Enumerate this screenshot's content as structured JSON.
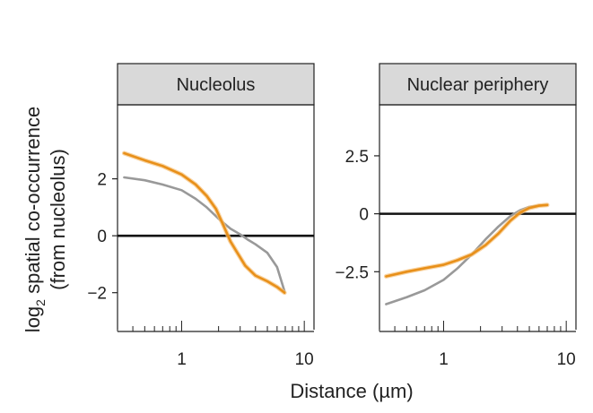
{
  "figure": {
    "ylabel_main": "log",
    "ylabel_sub": "2",
    "ylabel_rest": " spatial co-occurrence",
    "ylabel_line2": "(from nucleolus)",
    "xlabel": "Distance (µm)"
  },
  "chart_data": [
    {
      "type": "line",
      "title": "Nucleolus",
      "x_scale": "log",
      "xlim": [
        0.3,
        12
      ],
      "ylim": [
        -3.3,
        4.6
      ],
      "x_ticks": [
        1,
        10
      ],
      "x_tick_labels": [
        "1",
        "10"
      ],
      "y_ticks": [
        2,
        0,
        -2
      ],
      "y_tick_labels": [
        "2",
        "0",
        "−2"
      ],
      "zero_line": true,
      "series": [
        {
          "color": "#e8901a",
          "x": [
            0.34,
            0.5,
            0.7,
            1.0,
            1.3,
            1.6,
            1.9,
            2.2,
            2.5,
            2.8,
            3.3,
            4.0,
            5.0,
            6.0,
            6.9
          ],
          "y": [
            2.9,
            2.65,
            2.45,
            2.15,
            1.8,
            1.4,
            0.95,
            0.35,
            -0.2,
            -0.55,
            -1.05,
            -1.4,
            -1.6,
            -1.8,
            -2.0
          ]
        },
        {
          "color": "#999999",
          "x": [
            0.34,
            0.5,
            0.7,
            1.0,
            1.3,
            1.6,
            2.0,
            2.5,
            3.0,
            3.5,
            4.0,
            5.0,
            6.0,
            6.9
          ],
          "y": [
            2.05,
            1.95,
            1.8,
            1.6,
            1.3,
            1.0,
            0.6,
            0.25,
            0.05,
            -0.15,
            -0.3,
            -0.6,
            -1.1,
            -1.95
          ]
        }
      ]
    },
    {
      "type": "line",
      "title": "Nuclear periphery",
      "x_scale": "log",
      "xlim": [
        0.3,
        12
      ],
      "ylim": [
        -5.0,
        4.7
      ],
      "x_ticks": [
        1,
        10
      ],
      "x_tick_labels": [
        "1",
        "10"
      ],
      "y_ticks": [
        2.5,
        0,
        -2.5
      ],
      "y_tick_labels": [
        "2.5",
        "0",
        "−2.5"
      ],
      "zero_line": true,
      "series": [
        {
          "color": "#e8901a",
          "x": [
            0.34,
            0.5,
            0.7,
            1.0,
            1.3,
            1.7,
            2.2,
            2.8,
            3.5,
            4.2,
            5.0,
            6.0,
            7.0
          ],
          "y": [
            -2.7,
            -2.5,
            -2.35,
            -2.2,
            -2.0,
            -1.75,
            -1.35,
            -0.85,
            -0.3,
            0.05,
            0.25,
            0.35,
            0.38
          ]
        },
        {
          "color": "#999999",
          "x": [
            0.34,
            0.5,
            0.7,
            1.0,
            1.3,
            1.7,
            2.2,
            2.8,
            3.5,
            4.2,
            5.0,
            6.0,
            7.0
          ],
          "y": [
            -3.9,
            -3.6,
            -3.3,
            -2.85,
            -2.35,
            -1.75,
            -1.1,
            -0.55,
            -0.1,
            0.15,
            0.3,
            0.35,
            0.38
          ]
        }
      ]
    }
  ]
}
